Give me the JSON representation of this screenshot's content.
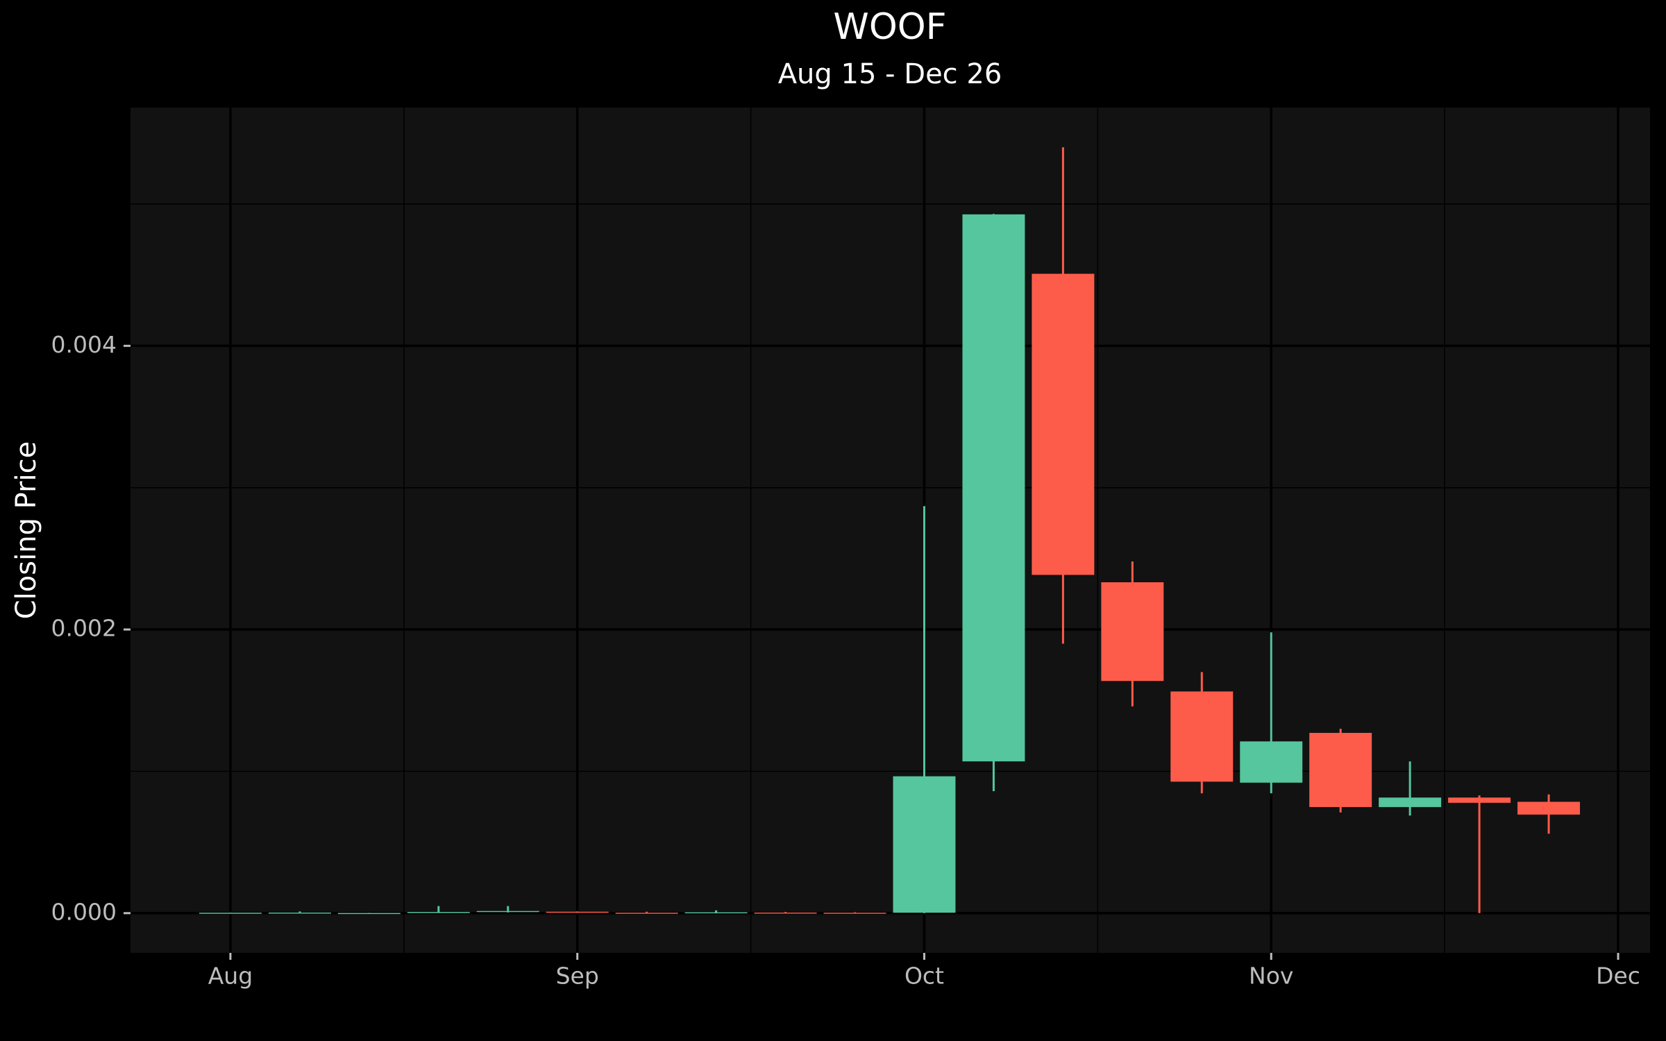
{
  "chart_data": {
    "type": "candlestick",
    "title": "WOOF",
    "subtitle": "Aug 15 - Dec 26",
    "y_label": "Closing Price",
    "x": [
      0,
      1,
      2,
      3,
      4,
      5,
      6,
      7,
      8,
      9,
      10,
      11,
      12,
      13,
      14,
      15,
      16,
      17,
      18,
      19
    ],
    "open": [
      1e-06,
      1e-06,
      1e-06,
      2e-06,
      1e-05,
      1e-05,
      3e-06,
      4e-06,
      4e-06,
      3e-06,
      3e-06,
      0.00107,
      0.004508,
      0.002333,
      0.001563,
      0.00092,
      0.001271,
      0.000748,
      0.000815,
      0.000785
    ],
    "high": [
      3e-06,
      1.2e-05,
      2e-06,
      5e-05,
      5e-05,
      1.2e-05,
      1e-05,
      2e-05,
      8e-06,
      6e-06,
      0.00287,
      0.00493,
      0.0054,
      0.00248,
      0.0017,
      0.00198,
      0.0013,
      0.00107,
      0.00083,
      0.000837
    ],
    "low": [
      0.0,
      0.0,
      0.0,
      1e-06,
      5e-06,
      3e-06,
      0.0,
      1e-06,
      1e-06,
      0.0,
      0.0,
      0.00086,
      0.0019,
      0.001458,
      0.000845,
      0.000845,
      0.00071,
      0.000688,
      0.0,
      0.00056
    ],
    "close": [
      3e-06,
      4e-06,
      1e-06,
      8e-06,
      1.5e-05,
      5e-06,
      2e-06,
      6e-06,
      2e-06,
      1e-06,
      0.000965,
      0.004927,
      0.002385,
      0.001637,
      0.000927,
      0.001211,
      0.000748,
      0.000815,
      0.000778,
      0.000695
    ],
    "up_color": "#55c69d",
    "down_color": "#fe5c4a",
    "xlim": [
      -1.44,
      20.46
    ],
    "xticks": [
      {
        "value": 0,
        "label": "Aug"
      },
      {
        "value": 5,
        "label": "Sep"
      },
      {
        "value": 10,
        "label": "Oct"
      },
      {
        "value": 15,
        "label": "Nov"
      },
      {
        "value": 20,
        "label": "Dec"
      }
    ],
    "x_minor_grid": [
      2.5,
      7.5,
      12.5,
      17.5
    ],
    "ylim": [
      -0.00028,
      0.00568
    ],
    "yticks": [
      {
        "value": 0,
        "label": "0.000"
      },
      {
        "value": 0.002,
        "label": "0.002"
      },
      {
        "value": 0.004,
        "label": "0.004"
      }
    ],
    "y_minor_grid": [
      0.001,
      0.003,
      0.005
    ],
    "grid": true
  }
}
